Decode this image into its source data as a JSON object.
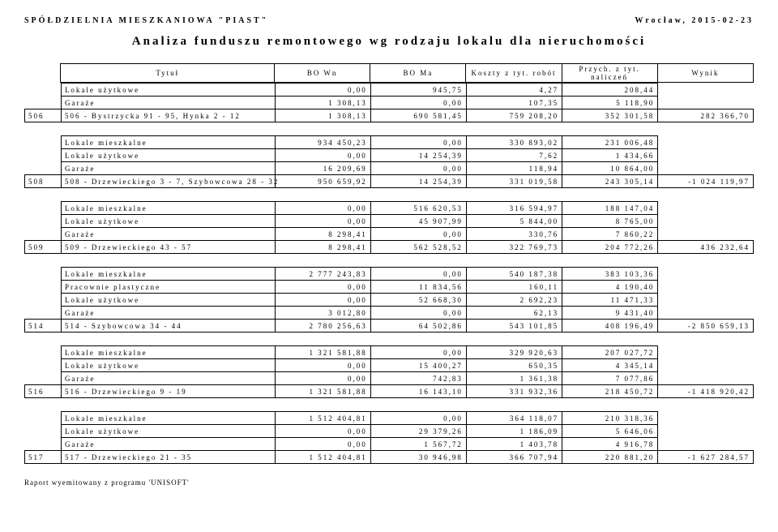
{
  "header": {
    "org": "SPÓŁDZIELNIA MIESZKANIOWA \"PIAST\"",
    "city_date": "Wrocław, 2015-02-23",
    "title": "Analiza funduszu remontowego wg rodzaju lokalu dla nieruchomości"
  },
  "columns": {
    "c1": "Tytuł",
    "c2": "BO Wn",
    "c3": "BO Ma",
    "c4": "Koszty z tyt. robót",
    "c5": "Przych. z tyt. naliczeń",
    "c6": "Wynik"
  },
  "sections": [
    {
      "pre_rows": [
        {
          "label": "Lokale użytkowe",
          "v": [
            "0,00",
            "945,75",
            "4,27",
            "208,44"
          ]
        },
        {
          "label": "Garaże",
          "v": [
            "1 308,13",
            "0,00",
            "107,35",
            "5 118,90"
          ]
        }
      ],
      "code": "506",
      "sum_label": "506 - Bystrzycka 91 - 95, Hynka 2 - 12",
      "sum": [
        "1 308,13",
        "690 581,45",
        "759 208,20",
        "352 301,58",
        "282 366,70"
      ]
    },
    {
      "pre_rows": [
        {
          "label": "Lokale mieszkalne",
          "v": [
            "934 450,23",
            "0,00",
            "330 893,02",
            "231 006,48"
          ]
        },
        {
          "label": "Lokale użytkowe",
          "v": [
            "0,00",
            "14 254,39",
            "7,62",
            "1 434,66"
          ]
        },
        {
          "label": "Garaże",
          "v": [
            "16 209,69",
            "0,00",
            "118,94",
            "10 864,00"
          ]
        }
      ],
      "code": "508",
      "sum_label": "508 - Drzewieckiego 3 - 7, Szybowcowa 28 - 32",
      "sum": [
        "950 659,92",
        "14 254,39",
        "331 019,58",
        "243 305,14",
        "-1 024 119,97"
      ]
    },
    {
      "pre_rows": [
        {
          "label": "Lokale mieszkalne",
          "v": [
            "0,00",
            "516 620,53",
            "316 594,97",
            "188 147,04"
          ]
        },
        {
          "label": "Lokale użytkowe",
          "v": [
            "0,00",
            "45 907,99",
            "5 844,00",
            "8 765,00"
          ]
        },
        {
          "label": "Garaże",
          "v": [
            "8 298,41",
            "0,00",
            "330,76",
            "7 860,22"
          ]
        }
      ],
      "code": "509",
      "sum_label": "509 - Drzewieckiego 43 - 57",
      "sum": [
        "8 298,41",
        "562 528,52",
        "322 769,73",
        "204 772,26",
        "436 232,64"
      ]
    },
    {
      "pre_rows": [
        {
          "label": "Lokale mieszkalne",
          "v": [
            "2 777 243,83",
            "0,00",
            "540 187,38",
            "383 103,36"
          ]
        },
        {
          "label": "Pracownie plastyczne",
          "v": [
            "0,00",
            "11 834,56",
            "160,11",
            "4 190,40"
          ]
        },
        {
          "label": "Lokale użytkowe",
          "v": [
            "0,00",
            "52 668,30",
            "2 692,23",
            "11 471,33"
          ]
        },
        {
          "label": "Garaże",
          "v": [
            "3 012,80",
            "0,00",
            "62,13",
            "9 431,40"
          ]
        }
      ],
      "code": "514",
      "sum_label": "514 - Szybowcowa 34 - 44",
      "sum": [
        "2 780 256,63",
        "64 502,86",
        "543 101,85",
        "408 196,49",
        "-2 850 659,13"
      ]
    },
    {
      "pre_rows": [
        {
          "label": "Lokale mieszkalne",
          "v": [
            "1 321 581,88",
            "0,00",
            "329 920,63",
            "207 027,72"
          ]
        },
        {
          "label": "Lokale użytkowe",
          "v": [
            "0,00",
            "15 400,27",
            "650,35",
            "4 345,14"
          ]
        },
        {
          "label": "Garaże",
          "v": [
            "0,00",
            "742,83",
            "1 361,38",
            "7 077,86"
          ]
        }
      ],
      "code": "516",
      "sum_label": "516 - Drzewieckiego 9 - 19",
      "sum": [
        "1 321 581,88",
        "16 143,10",
        "331 932,36",
        "218 450,72",
        "-1 418 920,42"
      ]
    },
    {
      "pre_rows": [
        {
          "label": "Lokale mieszkalne",
          "v": [
            "1 512 404,81",
            "0,00",
            "364 118,07",
            "210 318,36"
          ]
        },
        {
          "label": "Lokale użytkowe",
          "v": [
            "0,00",
            "29 379,26",
            "1 186,09",
            "5 646,06"
          ]
        },
        {
          "label": "Garaże",
          "v": [
            "0,00",
            "1 567,72",
            "1 403,78",
            "4 916,78"
          ]
        }
      ],
      "code": "517",
      "sum_label": "517 - Drzewieckiego 21 - 35",
      "sum": [
        "1 512 404,81",
        "30 946,98",
        "366 707,94",
        "220 881,20",
        "-1 627 284,57"
      ]
    }
  ],
  "footer": "Raport wyemitowany z programu 'UNISOFT'"
}
